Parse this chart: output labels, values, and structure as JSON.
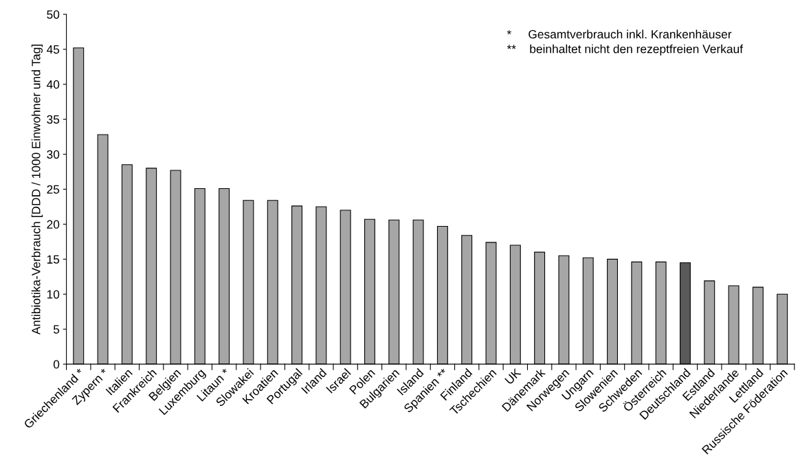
{
  "chart_data": {
    "type": "bar",
    "ylabel": "Antibiotika-Verbrauch [DDD / 1000 Einwohner und Tag]",
    "categories": [
      "Griechenland *",
      "Zypern *",
      "Italien",
      "Frankreich",
      "Belgien",
      "Luxemburg",
      "Litaun *",
      "Slowakei",
      "Kroatien",
      "Portugal",
      "Irland",
      "Israel",
      "Polen",
      "Bulgarien",
      "Island",
      "Spanien **",
      "Finland",
      "Tschechien",
      "UK",
      "Dänemark",
      "Norwegen",
      "Ungarn",
      "Slowenien",
      "Schweden",
      "Österreich",
      "Deutschland",
      "Estland",
      "Niederlande",
      "Lettland",
      "Russische Föderation"
    ],
    "values": [
      45.2,
      32.8,
      28.5,
      28.0,
      27.7,
      25.1,
      25.1,
      23.4,
      23.4,
      22.6,
      22.5,
      22.0,
      20.7,
      20.6,
      20.6,
      19.7,
      18.4,
      17.4,
      17.0,
      16.0,
      15.5,
      15.2,
      15.0,
      14.6,
      14.6,
      14.5,
      11.9,
      11.2,
      11.0,
      10.0
    ],
    "colors": [
      "#a6a6a6",
      "#a6a6a6",
      "#a6a6a6",
      "#a6a6a6",
      "#a6a6a6",
      "#a6a6a6",
      "#a6a6a6",
      "#a6a6a6",
      "#a6a6a6",
      "#a6a6a6",
      "#a6a6a6",
      "#a6a6a6",
      "#a6a6a6",
      "#a6a6a6",
      "#a6a6a6",
      "#a6a6a6",
      "#a6a6a6",
      "#a6a6a6",
      "#a6a6a6",
      "#a6a6a6",
      "#a6a6a6",
      "#a6a6a6",
      "#a6a6a6",
      "#a6a6a6",
      "#a6a6a6",
      "#595959",
      "#a6a6a6",
      "#a6a6a6",
      "#a6a6a6",
      "#a6a6a6"
    ],
    "ylim": [
      0,
      50
    ],
    "yticks": [
      0,
      5,
      10,
      15,
      20,
      25,
      30,
      35,
      40,
      45,
      50
    ],
    "grid": false,
    "legend": false,
    "annotations": [
      "*     Gesamtverbrauch inkl. Krankenhäuser",
      "**    beinhaltet nicht den rezeptfreien Verkauf"
    ]
  }
}
